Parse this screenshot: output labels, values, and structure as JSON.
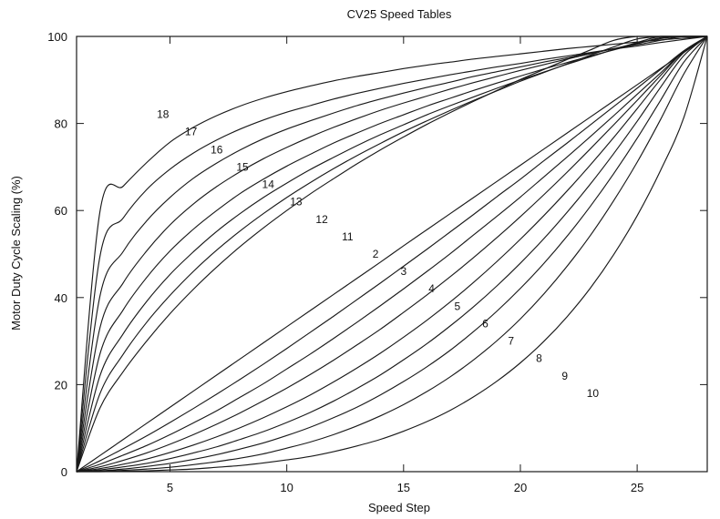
{
  "chart_data": {
    "type": "line",
    "title": "CV25 Speed Tables",
    "xlabel": "Speed Step",
    "ylabel": "Motor Duty Cycle Scaling (%)",
    "xlim": [
      1,
      28
    ],
    "ylim": [
      0,
      100
    ],
    "xticks": [
      5,
      10,
      15,
      20,
      25
    ],
    "yticks": [
      0,
      20,
      40,
      60,
      80,
      100
    ],
    "grid": false,
    "legend": "none",
    "x": [
      1,
      2,
      3,
      4,
      5,
      6,
      7,
      8,
      9,
      10,
      11,
      12,
      13,
      14,
      15,
      16,
      17,
      18,
      19,
      20,
      21,
      22,
      23,
      24,
      25,
      26,
      27,
      28
    ],
    "series": [
      {
        "name": "18",
        "label_x": 4.7,
        "label_y": 82.1,
        "values": [
          0,
          59.7,
          65.6,
          71.0,
          75.7,
          79.1,
          81.8,
          84.0,
          85.8,
          87.3,
          88.6,
          89.8,
          90.8,
          91.7,
          92.6,
          93.4,
          94.1,
          94.8,
          95.4,
          96.0,
          96.6,
          97.2,
          97.7,
          98.2,
          98.7,
          99.2,
          99.6,
          100
        ]
      },
      {
        "name": "17",
        "label_x": 5.9,
        "label_y": 78.1,
        "values": [
          0,
          49.4,
          58.3,
          64.8,
          69.5,
          73.2,
          76.2,
          78.7,
          80.8,
          82.6,
          84.1,
          85.6,
          86.9,
          88.1,
          89.2,
          90.2,
          91.2,
          92.1,
          93.0,
          93.8,
          94.7,
          95.5,
          96.3,
          97.1,
          97.8,
          98.6,
          99.3,
          100
        ]
      },
      {
        "name": "16",
        "label_x": 7.0,
        "label_y": 74.0,
        "values": [
          0,
          40.3,
          50.6,
          57.6,
          63.0,
          67.4,
          70.9,
          73.9,
          76.5,
          78.7,
          80.6,
          82.4,
          84.1,
          85.6,
          87.0,
          88.3,
          89.5,
          90.8,
          91.9,
          93.0,
          94.1,
          95.1,
          96.2,
          97.2,
          98.1,
          99.1,
          100,
          100
        ]
      },
      {
        "name": "15",
        "label_x": 8.1,
        "label_y": 70.0,
        "values": [
          0,
          33.0,
          43.4,
          50.7,
          56.7,
          61.5,
          65.5,
          68.9,
          71.9,
          74.5,
          76.9,
          79.1,
          81.1,
          83.0,
          84.7,
          86.3,
          87.9,
          89.4,
          90.8,
          92.2,
          93.5,
          94.8,
          96.0,
          97.2,
          98.4,
          99.5,
          100,
          100
        ]
      },
      {
        "name": "14",
        "label_x": 9.2,
        "label_y": 66.0,
        "values": [
          0,
          27.0,
          37.2,
          44.6,
          50.7,
          55.7,
          60.0,
          63.9,
          67.2,
          70.2,
          72.9,
          75.5,
          77.8,
          80.0,
          82.0,
          84.0,
          85.8,
          87.6,
          89.3,
          90.9,
          92.5,
          94.0,
          95.5,
          96.9,
          98.3,
          99.7,
          100,
          100
        ]
      },
      {
        "name": "13",
        "label_x": 10.4,
        "label_y": 62.0,
        "values": [
          0,
          22.0,
          31.7,
          39.1,
          45.3,
          50.5,
          55.2,
          59.3,
          63.0,
          66.3,
          69.4,
          72.2,
          74.9,
          77.4,
          79.7,
          82.0,
          84.1,
          86.1,
          88.1,
          90.0,
          91.8,
          93.6,
          95.3,
          97.0,
          98.6,
          100,
          100,
          100
        ]
      },
      {
        "name": "12",
        "label_x": 11.5,
        "label_y": 58.0,
        "values": [
          0,
          17.9,
          27.0,
          34.3,
          40.5,
          46.0,
          50.9,
          55.3,
          59.3,
          63.0,
          66.4,
          69.6,
          72.6,
          75.4,
          78.1,
          80.6,
          83.0,
          85.3,
          87.5,
          89.7,
          91.7,
          93.7,
          95.7,
          97.6,
          99.4,
          100,
          100,
          100
        ]
      },
      {
        "name": "11",
        "label_x": 12.6,
        "label_y": 54.0,
        "values": [
          0,
          14.6,
          23.0,
          30.0,
          36.3,
          41.9,
          47.0,
          51.7,
          56.0,
          60.0,
          63.8,
          67.3,
          70.7,
          73.9,
          76.9,
          79.8,
          82.5,
          85.1,
          87.6,
          90.1,
          92.4,
          94.7,
          96.9,
          99.1,
          100,
          100,
          100,
          100
        ]
      },
      {
        "name": "2",
        "label_x": 13.8,
        "label_y": 50.0,
        "values": [
          0,
          3.7,
          7.4,
          11.1,
          14.8,
          18.5,
          22.2,
          25.9,
          29.6,
          33.3,
          37.0,
          40.7,
          44.4,
          48.1,
          51.9,
          55.6,
          59.3,
          63.0,
          66.7,
          70.4,
          74.1,
          77.8,
          81.5,
          85.2,
          88.9,
          92.6,
          96.3,
          100
        ]
      },
      {
        "name": "3",
        "label_x": 15.0,
        "label_y": 46.0,
        "values": [
          0,
          2.5,
          5.3,
          8.2,
          11.3,
          14.5,
          17.8,
          21.2,
          24.7,
          28.3,
          32.0,
          35.7,
          39.5,
          43.3,
          47.2,
          51.1,
          55.1,
          59.1,
          63.2,
          67.2,
          71.4,
          75.5,
          79.7,
          83.9,
          88.1,
          92.4,
          96.7,
          100
        ]
      },
      {
        "name": "4",
        "label_x": 16.2,
        "label_y": 42.0,
        "values": [
          0,
          1.7,
          3.8,
          6.0,
          8.5,
          11.2,
          14.0,
          17.1,
          20.2,
          23.6,
          27.0,
          30.6,
          34.3,
          38.1,
          42.0,
          46.0,
          50.1,
          54.4,
          58.7,
          63.1,
          67.7,
          72.3,
          77.0,
          81.8,
          86.7,
          91.6,
          96.6,
          100
        ]
      },
      {
        "name": "5",
        "label_x": 17.3,
        "label_y": 38.0,
        "values": [
          0,
          1.1,
          2.6,
          4.3,
          6.3,
          8.5,
          10.9,
          13.5,
          16.3,
          19.2,
          22.3,
          25.6,
          29.1,
          32.7,
          36.6,
          40.6,
          44.8,
          49.2,
          53.8,
          58.6,
          63.6,
          68.8,
          74.2,
          79.7,
          85.3,
          91.0,
          96.6,
          100
        ]
      },
      {
        "name": "6",
        "label_x": 18.5,
        "label_y": 34.0,
        "values": [
          0,
          0.7,
          1.7,
          2.9,
          4.4,
          6.1,
          8.0,
          10.1,
          12.4,
          14.9,
          17.6,
          20.6,
          23.8,
          27.2,
          30.9,
          34.8,
          39.0,
          43.5,
          48.3,
          53.4,
          58.8,
          64.5,
          70.5,
          76.8,
          83.4,
          90.1,
          96.3,
          100
        ]
      },
      {
        "name": "7",
        "label_x": 19.6,
        "label_y": 30.0,
        "values": [
          0,
          0.4,
          1.1,
          1.9,
          3.0,
          4.3,
          5.7,
          7.4,
          9.2,
          11.3,
          13.6,
          16.2,
          19.1,
          22.2,
          25.7,
          29.4,
          33.5,
          37.9,
          42.7,
          47.9,
          53.5,
          59.6,
          66.1,
          73.1,
          80.5,
          88.3,
          95.6,
          100
        ]
      },
      {
        "name": "8",
        "label_x": 20.8,
        "label_y": 26.0,
        "values": [
          0,
          0.2,
          0.6,
          1.2,
          1.9,
          2.8,
          3.9,
          5.2,
          6.6,
          8.3,
          10.2,
          12.4,
          14.8,
          17.6,
          20.7,
          24.1,
          27.9,
          32.2,
          36.9,
          42.1,
          47.8,
          54.1,
          61.0,
          68.5,
          76.6,
          85.3,
          94.1,
          100
        ]
      },
      {
        "name": "9",
        "label_x": 21.9,
        "label_y": 22.0,
        "values": [
          0,
          0.1,
          0.3,
          0.6,
          1.0,
          1.6,
          2.3,
          3.1,
          4.1,
          5.4,
          6.8,
          8.5,
          10.5,
          12.8,
          15.4,
          18.4,
          21.8,
          25.7,
          30.1,
          35.1,
          40.8,
          47.2,
          54.3,
          62.3,
          71.1,
          80.9,
          91.4,
          100
        ]
      },
      {
        "name": "10",
        "label_x": 23.1,
        "label_y": 18.0,
        "values": [
          0,
          0,
          0.1,
          0.2,
          0.4,
          0.6,
          1.0,
          1.4,
          2.0,
          2.7,
          3.5,
          4.6,
          5.9,
          7.4,
          9.3,
          11.5,
          14.1,
          17.2,
          20.8,
          25.0,
          29.9,
          35.6,
          42.2,
          49.9,
          58.8,
          69.2,
          81.4,
          100
        ]
      }
    ]
  }
}
